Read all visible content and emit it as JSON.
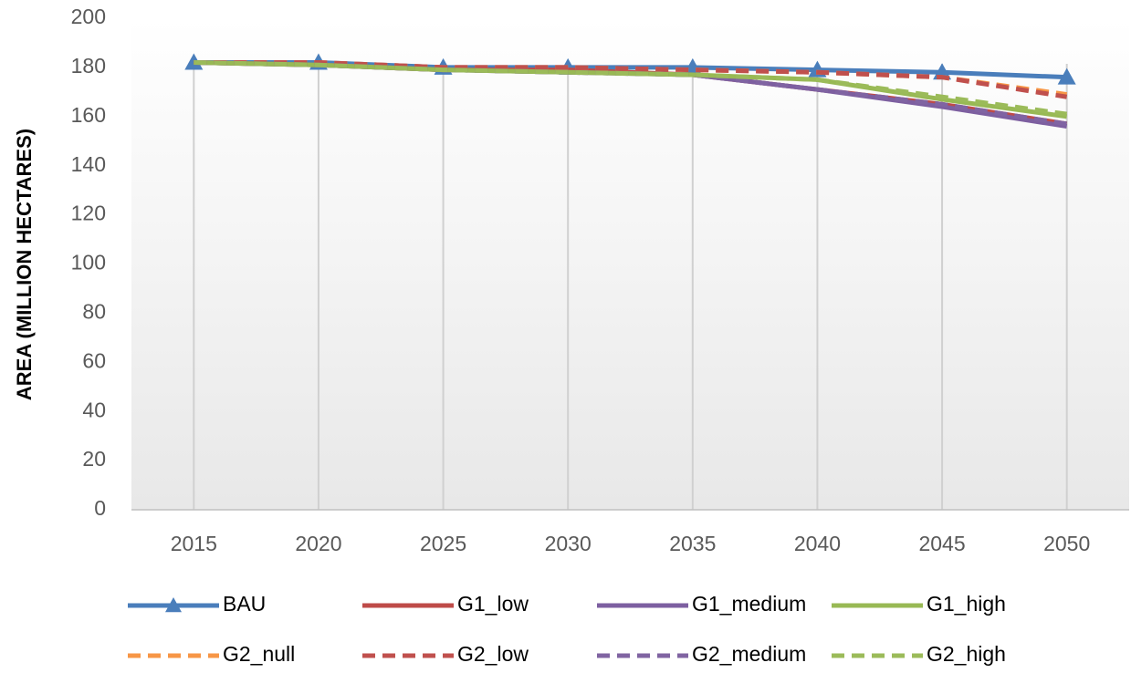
{
  "chart_data": {
    "type": "line",
    "y_label": "AREA (MILLION HECTARES)",
    "categories": [
      "2015",
      "2020",
      "2025",
      "2030",
      "2035",
      "2040",
      "2045",
      "2050"
    ],
    "ylim": [
      0,
      200
    ],
    "yticks": [
      0,
      20,
      40,
      60,
      80,
      100,
      120,
      140,
      160,
      180,
      200
    ],
    "grid": "x",
    "legend": "bottom",
    "series": [
      {
        "name": "BAU",
        "color": "#4a7ebb",
        "dashed": false,
        "marker": "triangle",
        "values": [
          182,
          182,
          180,
          180,
          180,
          179,
          178,
          176
        ]
      },
      {
        "name": "G1_low",
        "color": "#be4b48",
        "dashed": false,
        "values": [
          182,
          181,
          179,
          179,
          177,
          171,
          165,
          157
        ]
      },
      {
        "name": "G1_medium",
        "color": "#7d5fa0",
        "dashed": false,
        "values": [
          182,
          181,
          179,
          178,
          177,
          171,
          164,
          156
        ]
      },
      {
        "name": "G1_high",
        "color": "#98b954",
        "dashed": false,
        "values": [
          182,
          181,
          179,
          178,
          177,
          175,
          167,
          160
        ]
      },
      {
        "name": "G2_null",
        "color": "#f79646",
        "dashed": true,
        "values": [
          182,
          182,
          180,
          180,
          179,
          178,
          176,
          169
        ]
      },
      {
        "name": "G2_low",
        "color": "#c0504d",
        "dashed": true,
        "values": [
          182,
          182,
          180,
          180,
          179,
          178,
          176,
          168
        ]
      },
      {
        "name": "G2_medium",
        "color": "#8064a2",
        "dashed": true,
        "values": [
          182,
          181,
          179,
          178,
          177,
          171,
          165,
          157
        ]
      },
      {
        "name": "G2_high",
        "color": "#9bbb59",
        "dashed": true,
        "values": [
          182,
          181,
          179,
          178,
          177,
          175,
          168,
          161
        ]
      }
    ]
  }
}
